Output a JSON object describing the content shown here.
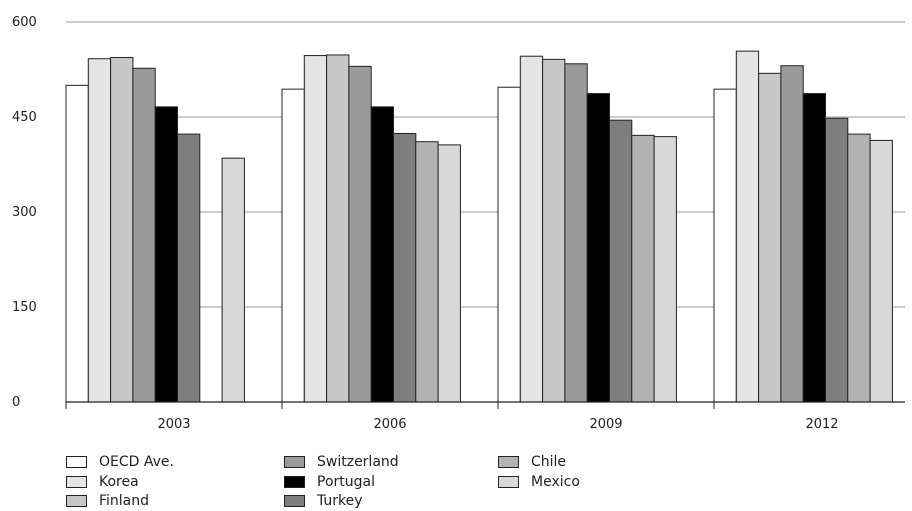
{
  "chart_data": {
    "type": "bar",
    "title": "",
    "xlabel": "",
    "ylabel": "",
    "categories": [
      "2003",
      "2006",
      "2009",
      "2012"
    ],
    "ylim": [
      0,
      600
    ],
    "yticks": [
      "0",
      "150",
      "300",
      "450",
      "600"
    ],
    "grid": true,
    "legend_position": "bottom",
    "series": [
      {
        "name": "OECD Ave.",
        "color": "#ffffff",
        "values": [
          500,
          494,
          497,
          494
        ]
      },
      {
        "name": "Korea",
        "color": "#e4e4e4",
        "values": [
          542,
          547,
          546,
          554
        ]
      },
      {
        "name": "Finland",
        "color": "#c7c7c7",
        "values": [
          544,
          548,
          541,
          519
        ]
      },
      {
        "name": "Switzerland",
        "color": "#9a9a9a",
        "values": [
          527,
          530,
          534,
          531
        ]
      },
      {
        "name": "Portugal",
        "color": "#000000",
        "values": [
          466,
          466,
          487,
          487
        ]
      },
      {
        "name": "Turkey",
        "color": "#7e7e7e",
        "values": [
          423,
          424,
          445,
          448
        ]
      },
      {
        "name": "Chile",
        "color": "#b3b3b3",
        "values": [
          null,
          411,
          421,
          423
        ]
      },
      {
        "name": "Mexico",
        "color": "#d9d9d9",
        "values": [
          385,
          406,
          419,
          413
        ]
      }
    ]
  }
}
